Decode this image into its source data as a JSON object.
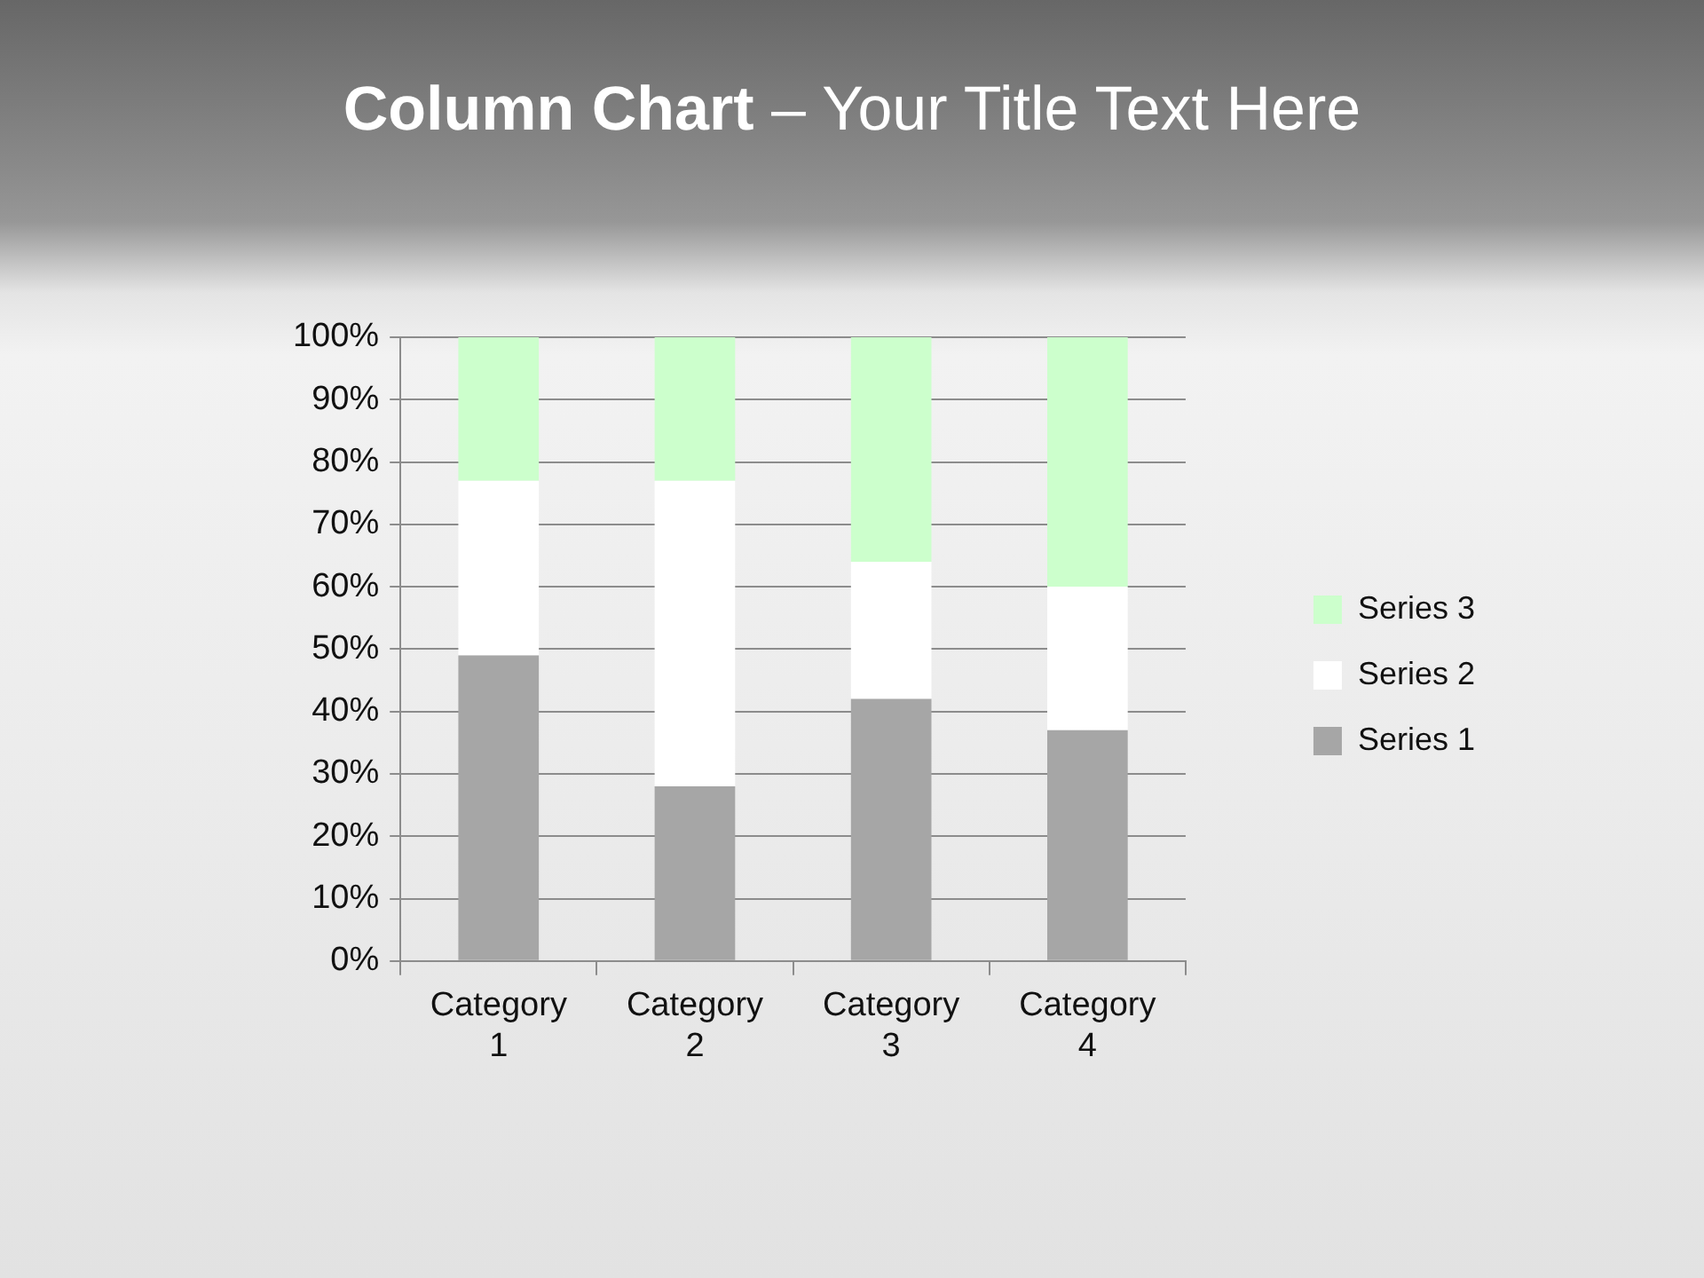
{
  "chart_data": {
    "type": "bar",
    "title": "Column Chart – Your Title Text Here",
    "categories": [
      "Category 1",
      "Category 2",
      "Category 3",
      "Category 4"
    ],
    "series": [
      {
        "name": "Series 1",
        "color": "#a6a6a6",
        "values": [
          49,
          28,
          42,
          37
        ]
      },
      {
        "name": "Series 2",
        "color": "#ffffff",
        "values": [
          28,
          49,
          22,
          23
        ]
      },
      {
        "name": "Series 3",
        "color": "#ccffcc",
        "values": [
          23,
          23,
          36,
          40
        ]
      }
    ],
    "stacked": true,
    "ylim": [
      0,
      100
    ],
    "yticks": [
      {
        "value": 0,
        "label": "0%"
      },
      {
        "value": 10,
        "label": "10%"
      },
      {
        "value": 20,
        "label": "20%"
      },
      {
        "value": 30,
        "label": "30%"
      },
      {
        "value": 40,
        "label": "40%"
      },
      {
        "value": 50,
        "label": "50%"
      },
      {
        "value": 60,
        "label": "60%"
      },
      {
        "value": 70,
        "label": "70%"
      },
      {
        "value": 80,
        "label": "80%"
      },
      {
        "value": 90,
        "label": "90%"
      },
      {
        "value": 100,
        "label": "100%"
      }
    ],
    "grid": "y",
    "legend": "right"
  }
}
